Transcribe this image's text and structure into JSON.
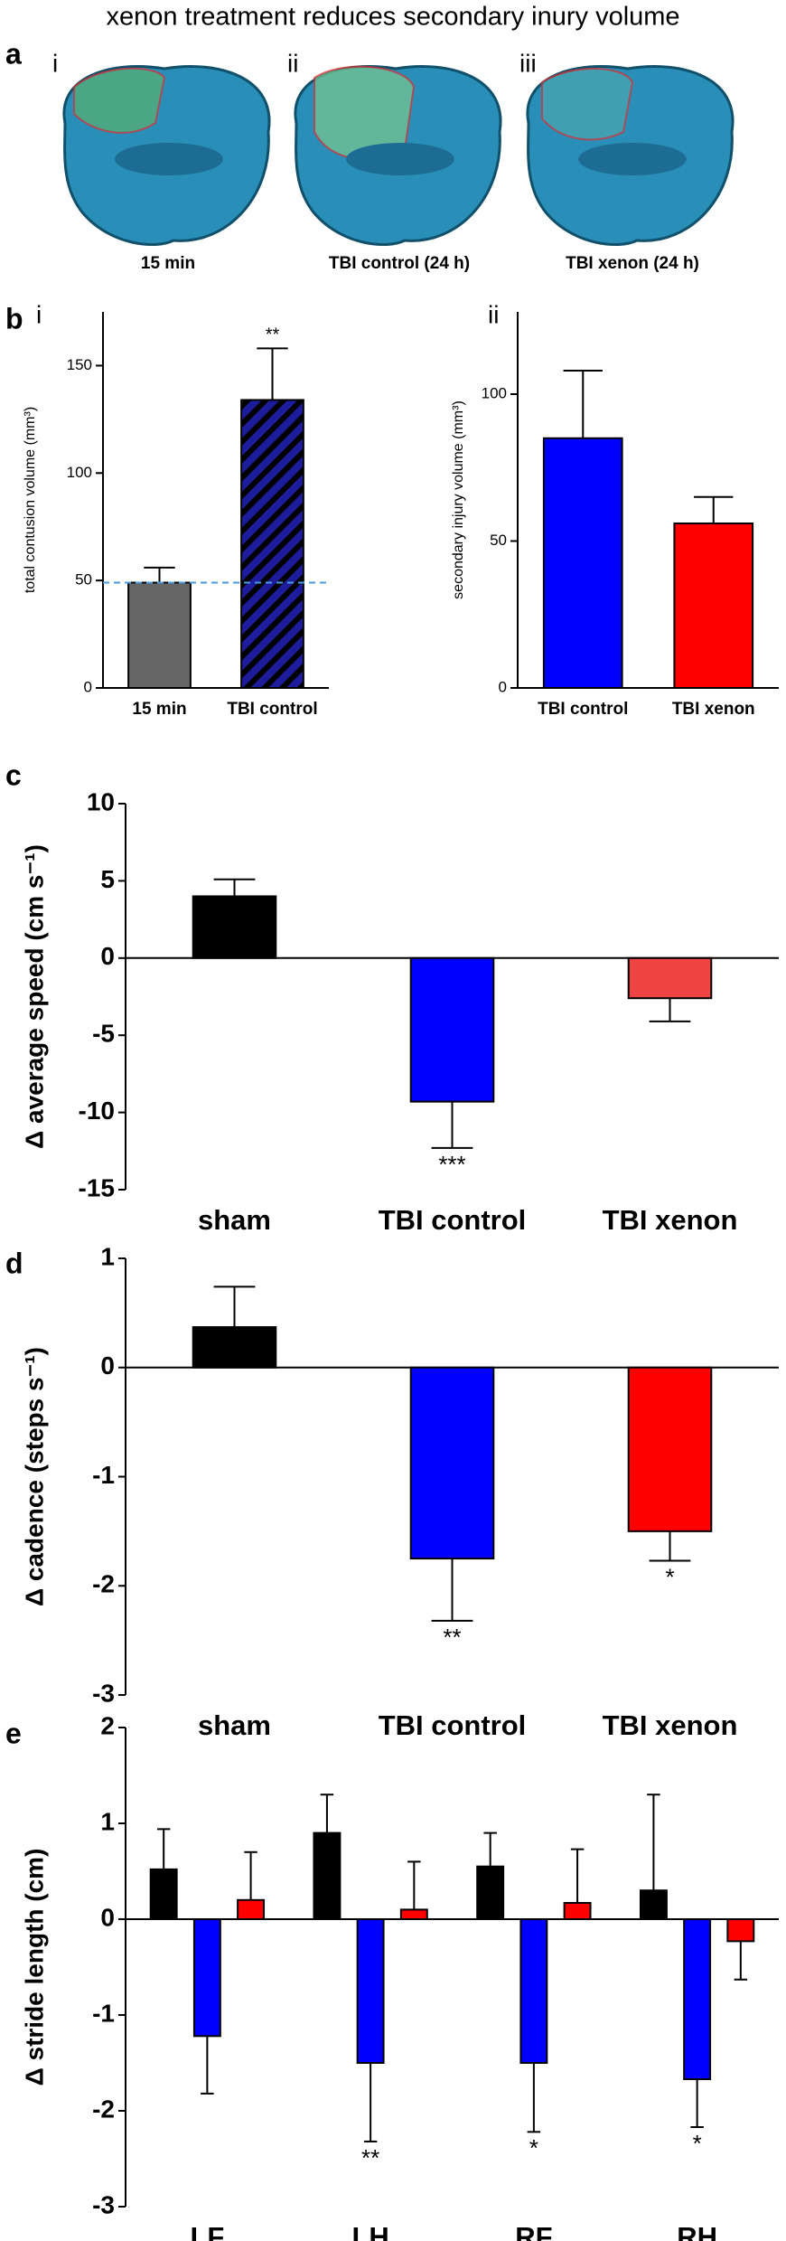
{
  "title": "xenon treatment reduces secondary inury volume",
  "panel_a": {
    "label": "a",
    "images": [
      {
        "label": "i",
        "caption": "15 min"
      },
      {
        "label": "ii",
        "caption": "TBI control (24 h)"
      },
      {
        "label": "iii",
        "caption": "TBI xenon (24 h)"
      }
    ]
  },
  "chart_data": [
    {
      "type": "bar",
      "panel": "b",
      "sublabel": "i",
      "y_label": "total contusion volume (mm³)",
      "categories": [
        "15 min",
        "TBI control"
      ],
      "values": [
        49,
        134
      ],
      "errors": [
        7,
        24
      ],
      "colors": [
        "#666666",
        "#1c1c9c"
      ],
      "hatch": [
        false,
        true
      ],
      "annotations": [
        null,
        "**"
      ],
      "reference_line": 49,
      "ylim": [
        0,
        175
      ],
      "yticks": [
        0,
        50,
        100,
        150
      ]
    },
    {
      "type": "bar",
      "sublabel": "ii",
      "y_label": "secondary injury volume (mm³)",
      "categories": [
        "TBI control",
        "TBI xenon"
      ],
      "values": [
        85,
        56
      ],
      "errors": [
        23,
        9
      ],
      "colors": [
        "#0000ff",
        "#ff0000"
      ],
      "ylim": [
        0,
        128
      ],
      "yticks": [
        0,
        50,
        100
      ]
    },
    {
      "type": "bar",
      "panel": "c",
      "y_label": "Δ average speed (cm s⁻¹)",
      "categories": [
        "sham",
        "TBI control",
        "TBI xenon"
      ],
      "values": [
        4,
        -9.3,
        -2.6
      ],
      "errors": [
        1.1,
        3,
        1.5
      ],
      "colors": [
        "#000000",
        "#0000ff",
        "#ee4444"
      ],
      "annotations": [
        null,
        "***",
        null
      ],
      "ylim": [
        -15,
        10
      ],
      "yticks": [
        -15,
        -10,
        -5,
        0,
        5,
        10
      ]
    },
    {
      "type": "bar",
      "panel": "d",
      "y_label": "Δ cadence (steps s⁻¹)",
      "categories": [
        "sham",
        "TBI control",
        "TBI xenon"
      ],
      "values": [
        0.37,
        -1.75,
        -1.5
      ],
      "errors": [
        0.37,
        0.57,
        0.27
      ],
      "colors": [
        "#000000",
        "#0000ff",
        "#ff0000"
      ],
      "annotations": [
        null,
        "**",
        "*"
      ],
      "ylim": [
        -3,
        1
      ],
      "yticks": [
        -3,
        -2,
        -1,
        0,
        1
      ]
    },
    {
      "type": "grouped_bar",
      "panel": "e",
      "y_label": "Δ stride length (cm)",
      "categories": [
        "LF",
        "LH",
        "RF",
        "RH"
      ],
      "series": [
        {
          "color": "#000000",
          "values": [
            0.52,
            0.9,
            0.55,
            0.3
          ],
          "errors": [
            0.42,
            0.4,
            0.35,
            1.0
          ]
        },
        {
          "color": "#0000ff",
          "values": [
            -1.22,
            -1.5,
            -1.5,
            -1.67
          ],
          "errors": [
            0.6,
            0.82,
            0.72,
            0.5
          ],
          "annotations": [
            null,
            "**",
            "*",
            "*"
          ]
        },
        {
          "color": "#ff0000",
          "values": [
            0.2,
            0.1,
            0.17,
            -0.23
          ],
          "errors": [
            0.5,
            0.5,
            0.56,
            0.4
          ]
        }
      ],
      "ylim": [
        -3,
        2
      ],
      "yticks": [
        -3,
        -2,
        -1,
        0,
        1,
        2
      ]
    }
  ]
}
